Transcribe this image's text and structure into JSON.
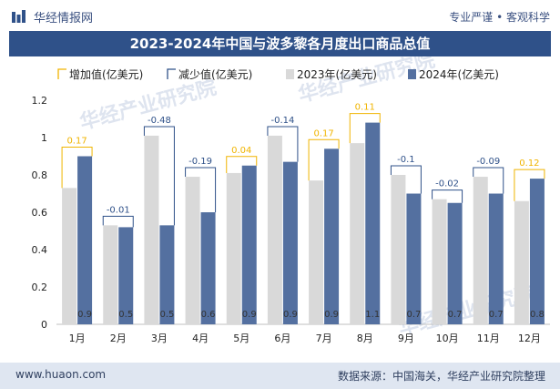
{
  "header": {
    "brand": "华经情报网",
    "tagline": "专业严谨 • 客观科学"
  },
  "footer": {
    "website": "www.huaon.com",
    "source": "数据来源：中国海关，华经产业研究院整理"
  },
  "watermark": "华经产业研究院",
  "colors": {
    "header_bar": "#2f5189",
    "increase": "#f0b400",
    "decrease": "#2f5189",
    "series_2023": "#d9d9d9",
    "series_2024": "#5470a0"
  },
  "chart_data": {
    "type": "bar",
    "title": "2023-2024年中国与波多黎各月度出口商品总值",
    "categories": [
      "1月",
      "2月",
      "3月",
      "4月",
      "5月",
      "6月",
      "7月",
      "8月",
      "9月",
      "10月",
      "11月",
      "12月"
    ],
    "series": [
      {
        "name": "2023年(亿美元)",
        "values": [
          0.73,
          0.53,
          1.01,
          0.79,
          0.81,
          1.01,
          0.77,
          0.97,
          0.8,
          0.67,
          0.79,
          0.66
        ]
      },
      {
        "name": "2024年(亿美元)",
        "values": [
          0.9,
          0.52,
          0.53,
          0.6,
          0.85,
          0.87,
          0.94,
          1.08,
          0.7,
          0.65,
          0.7,
          0.78
        ]
      }
    ],
    "bar_labels_2024": [
      "0.9",
      "0.5",
      "0.5",
      "0.6",
      "0.9",
      "0.9",
      "0.9",
      "1.1",
      "0.7",
      "0.7",
      "0.7",
      "0.8"
    ],
    "change": {
      "increase_name": "增加值(亿美元)",
      "decrease_name": "减少值(亿美元)",
      "values": [
        0.17,
        -0.01,
        -0.48,
        -0.19,
        0.04,
        -0.14,
        0.17,
        0.11,
        -0.1,
        -0.02,
        -0.09,
        0.12
      ],
      "labels": [
        "0.17",
        "-0.01",
        "-0.48",
        "-0.19",
        "0.04",
        "-0.14",
        "0.17",
        "0.11",
        "-0.1",
        "-0.02",
        "-0.09",
        "0.12"
      ]
    },
    "yticks": [
      "0",
      "0.2",
      "0.4",
      "0.6",
      "0.8",
      "1",
      "1.2"
    ],
    "ylim": [
      0,
      1.2
    ],
    "grid": false,
    "legend": "top"
  }
}
